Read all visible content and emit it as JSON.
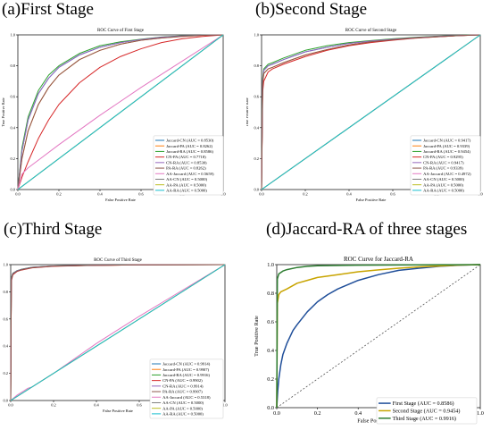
{
  "figure": {
    "panel_labels": [
      "(a)First Stage",
      "(b)Second Stage",
      "(c)Third Stage",
      "(d)Jaccard-RA of three stages"
    ]
  },
  "chart_data": [
    {
      "type": "line",
      "title": "ROC Curve of First Stage",
      "xlabel": "False Positive Rate",
      "ylabel": "True Positive Rate",
      "xlim": [
        0,
        1
      ],
      "ylim": [
        0,
        1
      ],
      "x_ticks": [
        "0.0",
        "0.2",
        "0.4",
        "0.6",
        "0.8",
        "1.0"
      ],
      "y_ticks": [
        "0.0",
        "0.2",
        "0.4",
        "0.6",
        "0.8",
        "1.0"
      ],
      "legend_position": "lower-right",
      "series": [
        {
          "name": "Jaccard-CN (AUC = 0.8530)",
          "color": "#1f77b4",
          "x": [
            0,
            0.02,
            0.05,
            0.1,
            0.15,
            0.2,
            0.3,
            0.4,
            0.5,
            0.6,
            0.7,
            0.8,
            0.9,
            1.0
          ],
          "y": [
            0,
            0.25,
            0.45,
            0.62,
            0.72,
            0.79,
            0.87,
            0.92,
            0.95,
            0.97,
            0.985,
            0.993,
            0.998,
            1
          ]
        },
        {
          "name": "Jaccard-PA (AUC = 0.8262)",
          "color": "#ff7f0e",
          "x": [
            0,
            0.02,
            0.05,
            0.1,
            0.15,
            0.2,
            0.3,
            0.4,
            0.5,
            0.6,
            0.7,
            0.8,
            0.9,
            1.0
          ],
          "y": [
            0,
            0.2,
            0.38,
            0.55,
            0.66,
            0.74,
            0.84,
            0.9,
            0.94,
            0.965,
            0.98,
            0.99,
            0.997,
            1
          ]
        },
        {
          "name": "Jaccard-RA (AUC = 0.8586)",
          "color": "#2ca02c",
          "x": [
            0,
            0.02,
            0.05,
            0.1,
            0.15,
            0.2,
            0.3,
            0.4,
            0.5,
            0.6,
            0.7,
            0.8,
            0.9,
            1.0
          ],
          "y": [
            0,
            0.27,
            0.47,
            0.64,
            0.74,
            0.8,
            0.88,
            0.93,
            0.955,
            0.972,
            0.986,
            0.994,
            0.998,
            1
          ]
        },
        {
          "name": "CN-PA (AUC = 0.7718)",
          "color": "#d62728",
          "x": [
            0,
            0.02,
            0.05,
            0.1,
            0.15,
            0.2,
            0.3,
            0.4,
            0.5,
            0.6,
            0.7,
            0.8,
            0.9,
            1.0
          ],
          "y": [
            0,
            0.08,
            0.18,
            0.33,
            0.45,
            0.55,
            0.69,
            0.79,
            0.86,
            0.91,
            0.95,
            0.975,
            0.99,
            1
          ]
        },
        {
          "name": "CN-RA (AUC = 0.8530)",
          "color": "#9467bd",
          "x": [
            0,
            0.02,
            0.05,
            0.1,
            0.15,
            0.2,
            0.3,
            0.4,
            0.5,
            0.6,
            0.7,
            0.8,
            0.9,
            1.0
          ],
          "y": [
            0,
            0.25,
            0.45,
            0.62,
            0.72,
            0.79,
            0.87,
            0.92,
            0.95,
            0.97,
            0.985,
            0.993,
            0.998,
            1
          ]
        },
        {
          "name": "PA-RA (AUC = 0.8262)",
          "color": "#8c564b",
          "x": [
            0,
            0.02,
            0.05,
            0.1,
            0.15,
            0.2,
            0.3,
            0.4,
            0.5,
            0.6,
            0.7,
            0.8,
            0.9,
            1.0
          ],
          "y": [
            0,
            0.2,
            0.38,
            0.55,
            0.66,
            0.74,
            0.84,
            0.9,
            0.94,
            0.965,
            0.98,
            0.99,
            0.997,
            1
          ]
        },
        {
          "name": "AA-Jaccard (AUC = 0.5659)",
          "color": "#e377c2",
          "x": [
            0,
            0.02,
            0.05,
            0.1,
            0.2,
            0.4,
            0.6,
            0.8,
            1.0
          ],
          "y": [
            0,
            0.1,
            0.14,
            0.19,
            0.29,
            0.48,
            0.66,
            0.83,
            1
          ]
        },
        {
          "name": "AA-CN (AUC = 0.5000)",
          "color": "#7f7f7f",
          "x": [
            0,
            1
          ],
          "y": [
            0,
            1
          ]
        },
        {
          "name": "AA-PA (AUC = 0.5000)",
          "color": "#bcbd22",
          "x": [
            0,
            1
          ],
          "y": [
            0,
            1
          ]
        },
        {
          "name": "AA-RA (AUC = 0.5000)",
          "color": "#17becf",
          "x": [
            0,
            1
          ],
          "y": [
            0,
            1
          ]
        }
      ]
    },
    {
      "type": "line",
      "title": "ROC Curve of Second Stage",
      "xlabel": "False Positive Rate",
      "ylabel": "True Positive Rate",
      "xlim": [
        0,
        1
      ],
      "ylim": [
        0,
        1
      ],
      "x_ticks": [
        "0.0",
        "0.2",
        "0.4",
        "0.6",
        "0.8",
        "1.0"
      ],
      "y_ticks": [
        "0.0",
        "0.2",
        "0.4",
        "0.6",
        "0.8",
        "1.0"
      ],
      "legend_position": "lower-right",
      "series": [
        {
          "name": "Jaccard-CN (AUC = 0.9417)",
          "color": "#1f77b4",
          "x": [
            0,
            0.005,
            0.01,
            0.03,
            0.05,
            0.1,
            0.2,
            0.3,
            0.4,
            0.5,
            0.6,
            0.7,
            0.8,
            0.9,
            1.0
          ],
          "y": [
            0,
            0.7,
            0.77,
            0.8,
            0.81,
            0.84,
            0.89,
            0.92,
            0.945,
            0.96,
            0.972,
            0.982,
            0.99,
            0.996,
            1
          ]
        },
        {
          "name": "Jaccard-PA (AUC = 0.9339)",
          "color": "#ff7f0e",
          "x": [
            0,
            0.005,
            0.01,
            0.03,
            0.05,
            0.1,
            0.2,
            0.3,
            0.4,
            0.5,
            0.6,
            0.7,
            0.8,
            0.9,
            1.0
          ],
          "y": [
            0,
            0.68,
            0.75,
            0.78,
            0.79,
            0.82,
            0.87,
            0.905,
            0.935,
            0.955,
            0.968,
            0.98,
            0.988,
            0.995,
            1
          ]
        },
        {
          "name": "Jaccard-RA (AUC = 0.9454)",
          "color": "#2ca02c",
          "x": [
            0,
            0.005,
            0.01,
            0.03,
            0.05,
            0.1,
            0.2,
            0.3,
            0.4,
            0.5,
            0.6,
            0.7,
            0.8,
            0.9,
            1.0
          ],
          "y": [
            0,
            0.72,
            0.78,
            0.81,
            0.82,
            0.85,
            0.9,
            0.93,
            0.95,
            0.963,
            0.975,
            0.984,
            0.991,
            0.997,
            1
          ]
        },
        {
          "name": "CN-PA (AUC = 0.9295)",
          "color": "#d62728",
          "x": [
            0,
            0.005,
            0.01,
            0.03,
            0.05,
            0.1,
            0.2,
            0.3,
            0.4,
            0.5,
            0.6,
            0.7,
            0.8,
            0.9,
            1.0
          ],
          "y": [
            0,
            0.63,
            0.7,
            0.76,
            0.78,
            0.81,
            0.86,
            0.9,
            0.93,
            0.95,
            0.965,
            0.978,
            0.987,
            0.995,
            1
          ]
        },
        {
          "name": "CN-RA (AUC = 0.9417)",
          "color": "#9467bd",
          "x": [
            0,
            0.005,
            0.01,
            0.03,
            0.05,
            0.1,
            0.2,
            0.3,
            0.4,
            0.5,
            0.6,
            0.7,
            0.8,
            0.9,
            1.0
          ],
          "y": [
            0,
            0.7,
            0.77,
            0.8,
            0.81,
            0.84,
            0.89,
            0.92,
            0.945,
            0.96,
            0.972,
            0.982,
            0.99,
            0.996,
            1
          ]
        },
        {
          "name": "PA-RA (AUC = 0.9339)",
          "color": "#8c564b",
          "x": [
            0,
            0.005,
            0.01,
            0.03,
            0.05,
            0.1,
            0.2,
            0.3,
            0.4,
            0.5,
            0.6,
            0.7,
            0.8,
            0.9,
            1.0
          ],
          "y": [
            0,
            0.68,
            0.75,
            0.78,
            0.79,
            0.82,
            0.87,
            0.905,
            0.935,
            0.955,
            0.968,
            0.98,
            0.988,
            0.995,
            1
          ]
        },
        {
          "name": "AA-Jaccard (AUC = 0.4972)",
          "color": "#e377c2",
          "x": [
            0,
            1
          ],
          "y": [
            0,
            1
          ]
        },
        {
          "name": "AA-CN (AUC = 0.5000)",
          "color": "#7f7f7f",
          "x": [
            0,
            1
          ],
          "y": [
            0,
            1
          ]
        },
        {
          "name": "AA-PA (AUC = 0.5000)",
          "color": "#bcbd22",
          "x": [
            0,
            1
          ],
          "y": [
            0,
            1
          ]
        },
        {
          "name": "AA-RA (AUC = 0.5000)",
          "color": "#17becf",
          "x": [
            0,
            1
          ],
          "y": [
            0,
            1
          ]
        }
      ]
    },
    {
      "type": "line",
      "title": "ROC Curve of Third Stage",
      "xlabel": "False Positive Rate",
      "ylabel": "",
      "xlim": [
        0,
        1
      ],
      "ylim": [
        0,
        1
      ],
      "x_ticks": [
        "0.0",
        "0.2",
        "0.4",
        "0.6",
        "0.8",
        "1.0"
      ],
      "y_ticks": [
        "0.0",
        "0.2",
        "0.4",
        "0.6",
        "0.8",
        "1.0"
      ],
      "legend_position": "lower-right",
      "series": [
        {
          "name": "Jaccard-CN (AUC = 0.9914)",
          "color": "#1f77b4",
          "x": [
            0,
            0.003,
            0.01,
            0.03,
            0.05,
            0.1,
            0.2,
            0.4,
            0.6,
            0.8,
            1.0
          ],
          "y": [
            0,
            0.9,
            0.935,
            0.955,
            0.965,
            0.98,
            0.99,
            0.996,
            0.998,
            0.999,
            1
          ]
        },
        {
          "name": "Jaccard-PA (AUC = 0.9907)",
          "color": "#ff7f0e",
          "x": [
            0,
            0.003,
            0.01,
            0.03,
            0.05,
            0.1,
            0.2,
            0.4,
            0.6,
            0.8,
            1.0
          ],
          "y": [
            0,
            0.89,
            0.93,
            0.952,
            0.962,
            0.978,
            0.989,
            0.995,
            0.998,
            0.999,
            1
          ]
        },
        {
          "name": "Jaccard-RA (AUC = 0.9916)",
          "color": "#2ca02c",
          "x": [
            0,
            0.003,
            0.01,
            0.03,
            0.05,
            0.1,
            0.2,
            0.4,
            0.6,
            0.8,
            1.0
          ],
          "y": [
            0,
            0.905,
            0.937,
            0.956,
            0.966,
            0.981,
            0.99,
            0.996,
            0.998,
            0.999,
            1
          ]
        },
        {
          "name": "CN-PA (AUC = 0.9902)",
          "color": "#d62728",
          "x": [
            0,
            0.003,
            0.01,
            0.03,
            0.05,
            0.1,
            0.2,
            0.4,
            0.6,
            0.8,
            1.0
          ],
          "y": [
            0,
            0.88,
            0.925,
            0.95,
            0.96,
            0.976,
            0.988,
            0.995,
            0.998,
            0.999,
            1
          ]
        },
        {
          "name": "CN-RA (AUC = 0.9914)",
          "color": "#9467bd",
          "x": [
            0,
            0.003,
            0.01,
            0.03,
            0.05,
            0.1,
            0.2,
            0.4,
            0.6,
            0.8,
            1.0
          ],
          "y": [
            0,
            0.9,
            0.935,
            0.955,
            0.965,
            0.98,
            0.99,
            0.996,
            0.998,
            0.999,
            1
          ]
        },
        {
          "name": "PA-RA (AUC = 0.9907)",
          "color": "#8c564b",
          "x": [
            0,
            0.003,
            0.01,
            0.03,
            0.05,
            0.1,
            0.2,
            0.4,
            0.6,
            0.8,
            1.0
          ],
          "y": [
            0,
            0.89,
            0.93,
            0.952,
            0.962,
            0.978,
            0.989,
            0.995,
            0.998,
            0.999,
            1
          ]
        },
        {
          "name": "AA-Jaccard (AUC = 0.5318)",
          "color": "#e377c2",
          "x": [
            0,
            0.03,
            0.06,
            0.08,
            0.1,
            0.2,
            0.4,
            0.6,
            0.8,
            1.0
          ],
          "y": [
            0,
            0.04,
            0.07,
            0.09,
            0.1,
            0.2,
            0.42,
            0.62,
            0.81,
            1
          ]
        },
        {
          "name": "AA-CN (AUC = 0.5000)",
          "color": "#7f7f7f",
          "x": [
            0,
            1
          ],
          "y": [
            0,
            1
          ]
        },
        {
          "name": "AA-PA (AUC = 0.5000)",
          "color": "#bcbd22",
          "x": [
            0,
            1
          ],
          "y": [
            0,
            1
          ]
        },
        {
          "name": "AA-RA (AUC = 0.5000)",
          "color": "#17becf",
          "x": [
            0,
            1
          ],
          "y": [
            0,
            1
          ]
        }
      ]
    },
    {
      "type": "line",
      "title": "ROC Curve for Jaccard-RA",
      "xlabel": "False Positive Rate",
      "ylabel": "True Positive Rate",
      "xlim": [
        0,
        1
      ],
      "ylim": [
        0,
        1
      ],
      "x_ticks": [
        "0.0",
        "0.2",
        "0.4",
        "0.6",
        "0.8",
        "1.0"
      ],
      "y_ticks": [
        "0.0",
        "0.2",
        "0.4",
        "0.6",
        "0.8",
        "1.0"
      ],
      "legend_position": "lower-right",
      "diagonal": true,
      "series": [
        {
          "name": "First Stage (AUC = 0.8586)",
          "color": "#1f4e99",
          "x": [
            0,
            0.005,
            0.01,
            0.02,
            0.03,
            0.05,
            0.08,
            0.1,
            0.15,
            0.2,
            0.25,
            0.3,
            0.4,
            0.5,
            0.6,
            0.7,
            0.8,
            0.9,
            1.0
          ],
          "y": [
            0,
            0.12,
            0.2,
            0.3,
            0.37,
            0.45,
            0.54,
            0.58,
            0.67,
            0.74,
            0.79,
            0.83,
            0.89,
            0.93,
            0.96,
            0.975,
            0.988,
            0.996,
            1
          ]
        },
        {
          "name": "Second Stage (AUC = 0.9454)",
          "color": "#c8a400",
          "x": [
            0,
            0.003,
            0.01,
            0.02,
            0.05,
            0.1,
            0.15,
            0.2,
            0.3,
            0.4,
            0.5,
            0.6,
            0.7,
            0.8,
            0.9,
            1.0
          ],
          "y": [
            0,
            0.73,
            0.79,
            0.81,
            0.83,
            0.87,
            0.89,
            0.91,
            0.93,
            0.95,
            0.963,
            0.975,
            0.984,
            0.991,
            0.997,
            1
          ]
        },
        {
          "name": "Third Stage (AUC = 0.9916)",
          "color": "#2e7d32",
          "x": [
            0,
            0.003,
            0.01,
            0.03,
            0.05,
            0.1,
            0.15,
            0.2,
            0.4,
            0.6,
            0.8,
            1.0
          ],
          "y": [
            0,
            0.9,
            0.935,
            0.955,
            0.965,
            0.98,
            0.988,
            0.992,
            0.996,
            0.998,
            0.999,
            1
          ]
        }
      ]
    }
  ]
}
